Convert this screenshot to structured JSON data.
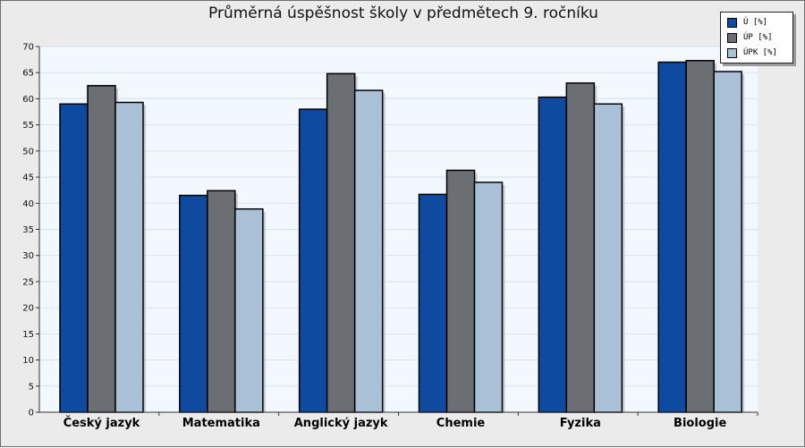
{
  "chart_data": {
    "type": "bar",
    "title": "Průměrná úspěšnost školy v předmětech 9. ročníku",
    "categories": [
      "Český jazyk",
      "Matematika",
      "Anglický jazyk",
      "Chemie",
      "Fyzika",
      "Biologie"
    ],
    "series": [
      {
        "name": "Ú [%]",
        "color": "#0e4aa0",
        "values": [
          59,
          41.5,
          58,
          41.7,
          60.3,
          67
        ]
      },
      {
        "name": "ÚP [%]",
        "color": "#6b6e73",
        "values": [
          62.5,
          42.4,
          64.8,
          46.3,
          63,
          67.3
        ]
      },
      {
        "name": "ÚPK [%]",
        "color": "#a9c0d6",
        "values": [
          59.3,
          38.9,
          61.6,
          44,
          59,
          65.2
        ]
      }
    ],
    "ylim": [
      0,
      70
    ],
    "ytick_step": 5,
    "grid": true,
    "legend_position": "top-right"
  }
}
